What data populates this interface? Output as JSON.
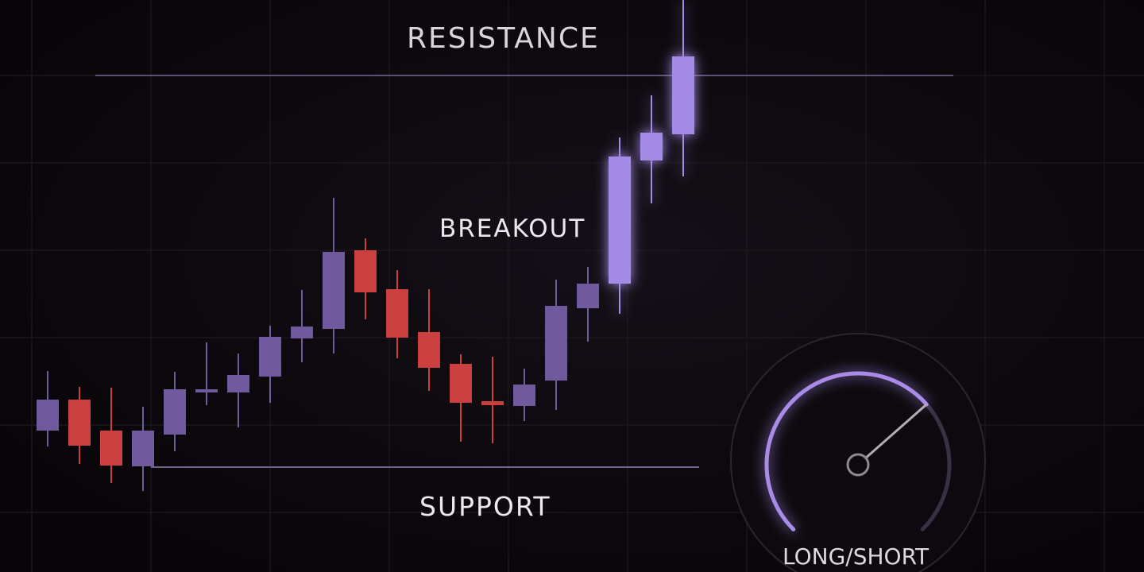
{
  "chart_data": {
    "type": "candlestick",
    "ylim": [
      0,
      720
    ],
    "grid": true,
    "colors": {
      "bull": "#6f5a9e",
      "bull_bright": "#a48ce6",
      "bear": "#c9403f",
      "line": "#8a7cb0"
    },
    "candles": [
      {
        "open": 178,
        "close": 217,
        "high": 253,
        "low": 158
      },
      {
        "open": 217,
        "close": 159,
        "high": 233,
        "low": 136
      },
      {
        "open": 178,
        "close": 134,
        "high": 232,
        "low": 112
      },
      {
        "open": 133,
        "close": 178,
        "high": 208,
        "low": 102
      },
      {
        "open": 173,
        "close": 230,
        "high": 252,
        "low": 152
      },
      {
        "open": 226,
        "close": 230,
        "high": 289,
        "low": 210
      },
      {
        "open": 226,
        "close": 248,
        "high": 275,
        "low": 182
      },
      {
        "open": 246,
        "close": 296,
        "high": 310,
        "low": 213
      },
      {
        "open": 294,
        "close": 309,
        "high": 355,
        "low": 264
      },
      {
        "open": 306,
        "close": 403,
        "high": 471,
        "low": 275
      },
      {
        "open": 405,
        "close": 352,
        "high": 420,
        "low": 318
      },
      {
        "open": 356,
        "close": 295,
        "high": 380,
        "low": 269
      },
      {
        "open": 302,
        "close": 257,
        "high": 356,
        "low": 228
      },
      {
        "open": 262,
        "close": 213,
        "high": 274,
        "low": 164
      },
      {
        "open": 215,
        "close": 210,
        "high": 271,
        "low": 162
      },
      {
        "open": 209,
        "close": 236,
        "high": 256,
        "low": 190
      },
      {
        "open": 241,
        "close": 335,
        "high": 368,
        "low": 204
      },
      {
        "open": 332,
        "close": 363,
        "high": 384,
        "low": 290
      },
      {
        "open": 363,
        "close": 523,
        "high": 547,
        "low": 325
      },
      {
        "open": 518,
        "close": 553,
        "high": 600,
        "low": 464
      },
      {
        "open": 551,
        "close": 649,
        "high": 720,
        "low": 498
      }
    ],
    "levels": [
      {
        "label": "RESISTANCE",
        "value": 625
      },
      {
        "label": "SUPPORT",
        "value": 132
      }
    ],
    "annotations": {
      "breakout": "BREAKOUT"
    }
  },
  "gauge": {
    "label": "LONG/SHORT",
    "value": 0.68,
    "arc_color": "#a98be8"
  }
}
